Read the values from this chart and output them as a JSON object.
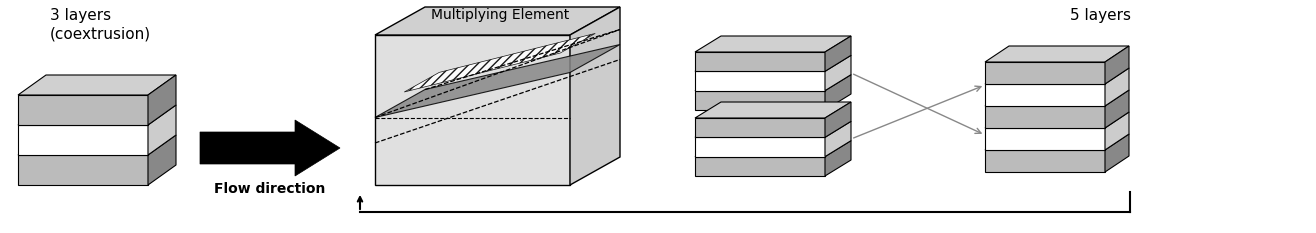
{
  "bg_color": "#ffffff",
  "text_3layers": "3 layers\n(coextrusion)",
  "text_mult": "Multiplying Element",
  "text_5layers": "5 layers",
  "text_flow": "Flow direction",
  "gray_dark": "#555555",
  "gray_mid": "#888888",
  "gray_light": "#bbbbbb",
  "gray_lighter": "#cccccc",
  "gray_lightest": "#e0e0e0",
  "gray_top": "#d0d0d0",
  "white": "#ffffff",
  "black": "#000000"
}
